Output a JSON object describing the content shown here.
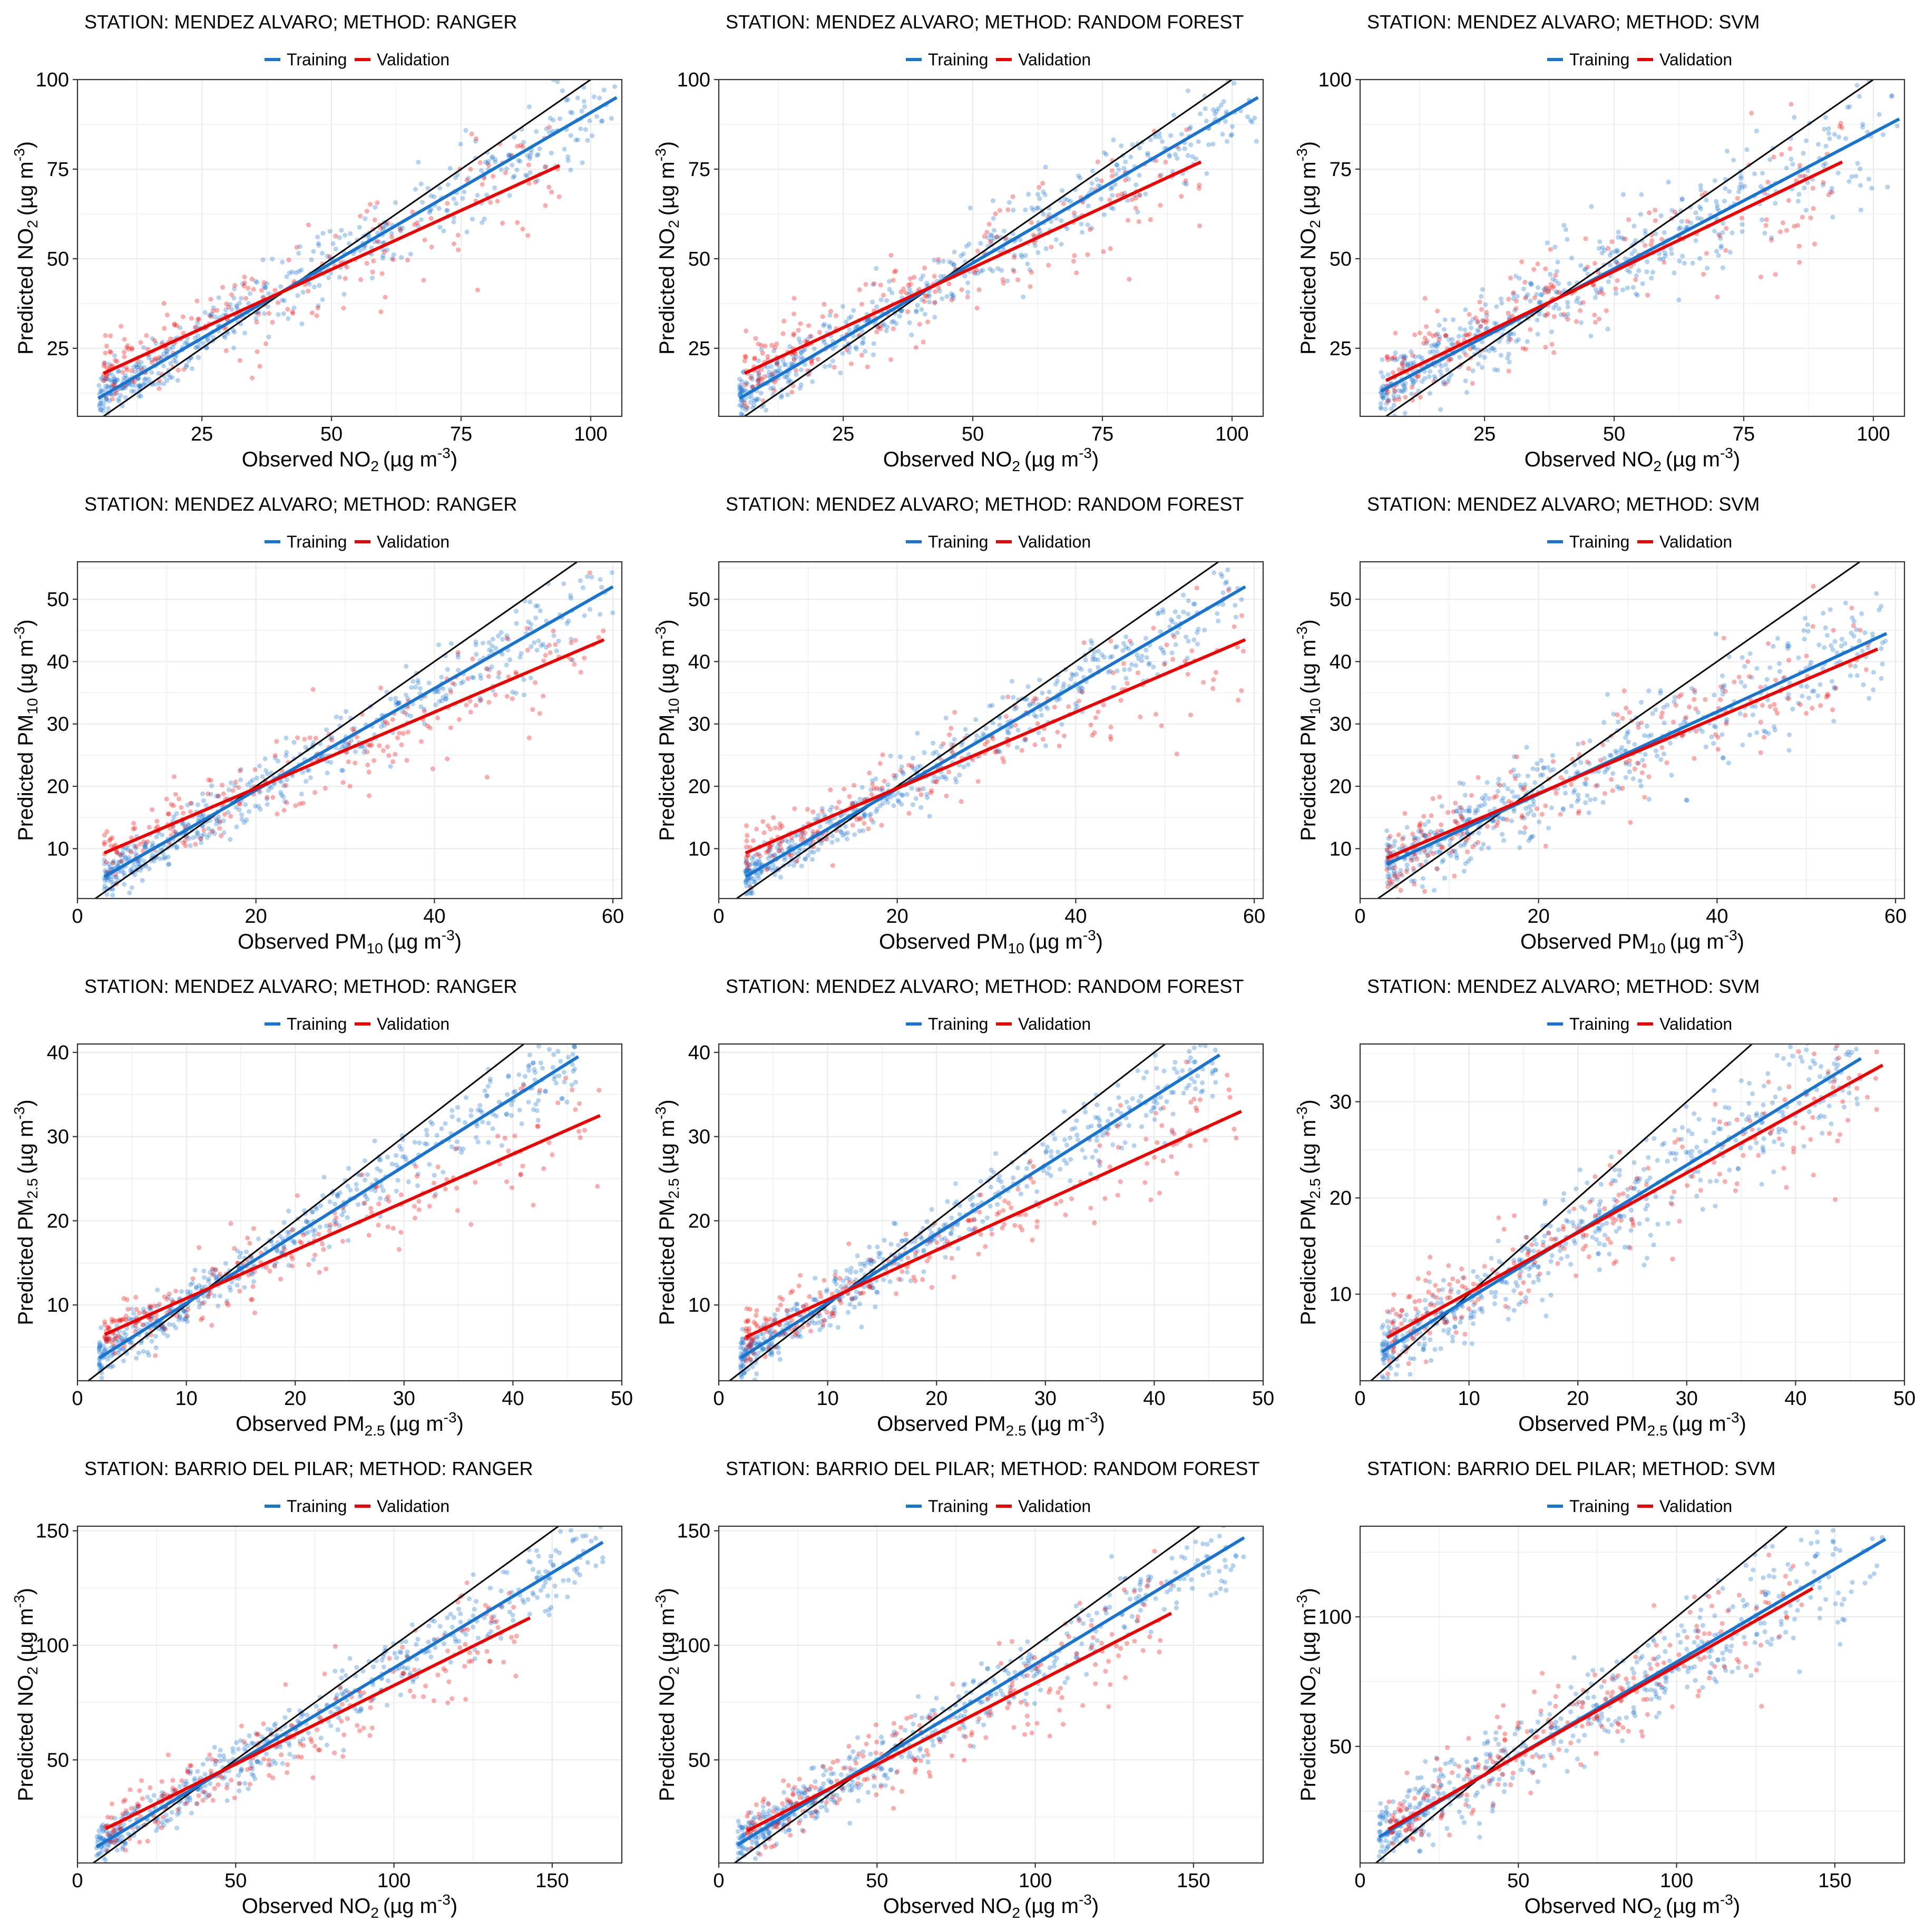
{
  "colors": {
    "training": "#1874CD",
    "validation": "#EE0000",
    "identity": "#000000",
    "grid": "#EBEBEB"
  },
  "legend": {
    "training_label": "Training",
    "validation_label": "Validation"
  },
  "chart_data": [
    {
      "type": "scatter",
      "title": "STATION: MENDEZ ALVARO; METHOD: RANGER",
      "xlabel": {
        "prefix": "Observed NO",
        "sub": "2",
        "unit": "(µg m",
        "sup": "-3",
        "close": ")"
      },
      "ylabel": {
        "prefix": "Predicted NO",
        "sub": "2",
        "unit": "(µg m",
        "sup": "-3",
        "close": ")"
      },
      "xlim": [
        1,
        106
      ],
      "ylim": [
        6,
        100
      ],
      "xticks": [
        25,
        50,
        75,
        100
      ],
      "yticks": [
        25,
        50,
        75,
        100
      ],
      "training_fit": {
        "x": [
          5,
          105
        ],
        "y": [
          11,
          95
        ]
      },
      "validation_fit": {
        "x": [
          6,
          94
        ],
        "y": [
          18,
          76
        ]
      },
      "training_spread": 6,
      "validation_spread": 9
    },
    {
      "type": "scatter",
      "title": "STATION: MENDEZ ALVARO; METHOD: RANDOM FOREST",
      "xlabel": {
        "prefix": "Observed NO",
        "sub": "2",
        "unit": "(µg m",
        "sup": "-3",
        "close": ")"
      },
      "ylabel": {
        "prefix": "Predicted NO",
        "sub": "2",
        "unit": "(µg m",
        "sup": "-3",
        "close": ")"
      },
      "xlim": [
        1,
        106
      ],
      "ylim": [
        6,
        100
      ],
      "xticks": [
        25,
        50,
        75,
        100
      ],
      "yticks": [
        25,
        50,
        75,
        100
      ],
      "training_fit": {
        "x": [
          5,
          105
        ],
        "y": [
          11,
          95
        ]
      },
      "validation_fit": {
        "x": [
          6,
          94
        ],
        "y": [
          18,
          77
        ]
      },
      "training_spread": 6,
      "validation_spread": 9
    },
    {
      "type": "scatter",
      "title": "STATION: MENDEZ ALVARO; METHOD: SVM",
      "xlabel": {
        "prefix": "Observed NO",
        "sub": "2",
        "unit": "(µg m",
        "sup": "-3",
        "close": ")"
      },
      "ylabel": {
        "prefix": "Predicted NO",
        "sub": "2",
        "unit": "(µg m",
        "sup": "-3",
        "close": ")"
      },
      "xlim": [
        1,
        106
      ],
      "ylim": [
        6,
        100
      ],
      "xticks": [
        25,
        50,
        75,
        100
      ],
      "yticks": [
        25,
        50,
        75,
        100
      ],
      "training_fit": {
        "x": [
          5,
          105
        ],
        "y": [
          13,
          89
        ]
      },
      "validation_fit": {
        "x": [
          6,
          94
        ],
        "y": [
          16,
          77
        ]
      },
      "training_spread": 9,
      "validation_spread": 10
    },
    {
      "type": "scatter",
      "title": "STATION: MENDEZ ALVARO; METHOD: RANGER",
      "xlabel": {
        "prefix": "Observed PM",
        "sub": "10",
        "unit": "(µg m",
        "sup": "-3",
        "close": ")"
      },
      "ylabel": {
        "prefix": "Predicted PM",
        "sub": "10",
        "unit": "(µg m",
        "sup": "-3",
        "close": ")"
      },
      "xlim": [
        0,
        61
      ],
      "ylim": [
        2,
        56
      ],
      "xticks": [
        0,
        20,
        40,
        60
      ],
      "yticks": [
        10,
        20,
        30,
        40,
        50
      ],
      "training_fit": {
        "x": [
          3,
          60
        ],
        "y": [
          5.5,
          52
        ]
      },
      "validation_fit": {
        "x": [
          3,
          59
        ],
        "y": [
          9.3,
          43.5
        ]
      },
      "training_spread": 3,
      "validation_spread": 4.5
    },
    {
      "type": "scatter",
      "title": "STATION: MENDEZ ALVARO; METHOD: RANDOM FOREST",
      "xlabel": {
        "prefix": "Observed PM",
        "sub": "10",
        "unit": "(µg m",
        "sup": "-3",
        "close": ")"
      },
      "ylabel": {
        "prefix": "Predicted PM",
        "sub": "10",
        "unit": "(µg m",
        "sup": "-3",
        "close": ")"
      },
      "xlim": [
        0,
        61
      ],
      "ylim": [
        2,
        56
      ],
      "xticks": [
        0,
        20,
        40,
        60
      ],
      "yticks": [
        10,
        20,
        30,
        40,
        50
      ],
      "training_fit": {
        "x": [
          3,
          59
        ],
        "y": [
          5.5,
          52
        ]
      },
      "validation_fit": {
        "x": [
          3,
          59
        ],
        "y": [
          9.3,
          43.5
        ]
      },
      "training_spread": 3,
      "validation_spread": 4.5
    },
    {
      "type": "scatter",
      "title": "STATION: MENDEZ ALVARO; METHOD: SVM",
      "xlabel": {
        "prefix": "Observed PM",
        "sub": "10",
        "unit": "(µg m",
        "sup": "-3",
        "close": ")"
      },
      "ylabel": {
        "prefix": "Predicted PM",
        "sub": "10",
        "unit": "(µg m",
        "sup": "-3",
        "close": ")"
      },
      "xlim": [
        0,
        61
      ],
      "ylim": [
        2,
        56
      ],
      "xticks": [
        0,
        20,
        40,
        60
      ],
      "yticks": [
        10,
        20,
        30,
        40,
        50
      ],
      "training_fit": {
        "x": [
          3,
          59
        ],
        "y": [
          7.5,
          44.5
        ]
      },
      "validation_fit": {
        "x": [
          3,
          58
        ],
        "y": [
          8.5,
          42
        ]
      },
      "training_spread": 4.5,
      "validation_spread": 5
    },
    {
      "type": "scatter",
      "title": "STATION: MENDEZ ALVARO; METHOD: RANGER",
      "xlabel": {
        "prefix": "Observed PM",
        "sub": "2.5",
        "unit": "(µg m",
        "sup": "-3",
        "close": ")"
      },
      "ylabel": {
        "prefix": "Predicted PM",
        "sub": "2.5",
        "unit": "(µg m",
        "sup": "-3",
        "close": ")"
      },
      "xlim": [
        0,
        50
      ],
      "ylim": [
        1,
        41
      ],
      "xticks": [
        0,
        10,
        20,
        30,
        40,
        50
      ],
      "yticks": [
        10,
        20,
        30,
        40
      ],
      "training_fit": {
        "x": [
          2,
          46
        ],
        "y": [
          3.7,
          39.5
        ]
      },
      "validation_fit": {
        "x": [
          2.5,
          48
        ],
        "y": [
          6.5,
          32.5
        ]
      },
      "training_spread": 2.2,
      "validation_spread": 3
    },
    {
      "type": "scatter",
      "title": "STATION: MENDEZ ALVARO; METHOD: RANDOM FOREST",
      "xlabel": {
        "prefix": "Observed PM",
        "sub": "2.5",
        "unit": "(µg m",
        "sup": "-3",
        "close": ")"
      },
      "ylabel": {
        "prefix": "Predicted PM",
        "sub": "2.5",
        "unit": "(µg m",
        "sup": "-3",
        "close": ")"
      },
      "xlim": [
        0,
        50
      ],
      "ylim": [
        1,
        41
      ],
      "xticks": [
        0,
        10,
        20,
        30,
        40,
        50
      ],
      "yticks": [
        10,
        20,
        30,
        40
      ],
      "training_fit": {
        "x": [
          2,
          46
        ],
        "y": [
          3.7,
          39.7
        ]
      },
      "validation_fit": {
        "x": [
          2.5,
          48
        ],
        "y": [
          6.2,
          33
        ]
      },
      "training_spread": 2.2,
      "validation_spread": 3
    },
    {
      "type": "scatter",
      "title": "STATION: MENDEZ ALVARO; METHOD: SVM",
      "xlabel": {
        "prefix": "Observed PM",
        "sub": "2.5",
        "unit": "(µg m",
        "sup": "-3",
        "close": ")"
      },
      "ylabel": {
        "prefix": "Predicted PM",
        "sub": "2.5",
        "unit": "(µg m",
        "sup": "-3",
        "close": ")"
      },
      "xlim": [
        0,
        50
      ],
      "ylim": [
        1,
        36
      ],
      "xticks": [
        0,
        10,
        20,
        30,
        40,
        50
      ],
      "yticks": [
        10,
        20,
        30
      ],
      "training_fit": {
        "x": [
          2,
          46
        ],
        "y": [
          4,
          34.5
        ]
      },
      "validation_fit": {
        "x": [
          2.5,
          48
        ],
        "y": [
          5.5,
          33.8
        ]
      },
      "training_spread": 3,
      "validation_spread": 3.5
    },
    {
      "type": "scatter",
      "title": "STATION: BARRIO DEL PILAR; METHOD: RANGER",
      "xlabel": {
        "prefix": "Observed NO",
        "sub": "2",
        "unit": "(µg m",
        "sup": "-3",
        "close": ")"
      },
      "ylabel": {
        "prefix": "Predicted NO",
        "sub": "2",
        "unit": "(µg m",
        "sup": "-3",
        "close": ")"
      },
      "xlim": [
        0,
        172
      ],
      "ylim": [
        5,
        152
      ],
      "xticks": [
        0,
        50,
        100,
        150
      ],
      "yticks": [
        50,
        100,
        150
      ],
      "training_fit": {
        "x": [
          6,
          166
        ],
        "y": [
          12,
          145
        ]
      },
      "validation_fit": {
        "x": [
          9,
          143
        ],
        "y": [
          20,
          112
        ]
      },
      "training_spread": 8,
      "validation_spread": 12
    },
    {
      "type": "scatter",
      "title": "STATION: BARRIO DEL PILAR; METHOD: RANDOM FOREST",
      "xlabel": {
        "prefix": "Observed NO",
        "sub": "2",
        "unit": "(µg m",
        "sup": "-3",
        "close": ")"
      },
      "ylabel": {
        "prefix": "Predicted NO",
        "sub": "2",
        "unit": "(µg m",
        "sup": "-3",
        "close": ")"
      },
      "xlim": [
        0,
        172
      ],
      "ylim": [
        5,
        152
      ],
      "xticks": [
        0,
        50,
        100,
        150
      ],
      "yticks": [
        50,
        100,
        150
      ],
      "training_fit": {
        "x": [
          6,
          166
        ],
        "y": [
          13,
          147
        ]
      },
      "validation_fit": {
        "x": [
          9,
          143
        ],
        "y": [
          19,
          114
        ]
      },
      "training_spread": 8,
      "validation_spread": 12
    },
    {
      "type": "scatter",
      "title": "STATION: BARRIO DEL PILAR; METHOD: SVM",
      "xlabel": {
        "prefix": "Observed NO",
        "sub": "2",
        "unit": "(µg m",
        "sup": "-3",
        "close": ")"
      },
      "ylabel": {
        "prefix": "Predicted NO",
        "sub": "2",
        "unit": "(µg m",
        "sup": "-3",
        "close": ")"
      },
      "xlim": [
        0,
        172
      ],
      "ylim": [
        5,
        135
      ],
      "xticks": [
        0,
        50,
        100,
        150
      ],
      "yticks": [
        50,
        100
      ],
      "training_fit": {
        "x": [
          6,
          166
        ],
        "y": [
          15,
          130
        ]
      },
      "validation_fit": {
        "x": [
          9,
          143
        ],
        "y": [
          18,
          111
        ]
      },
      "training_spread": 11,
      "validation_spread": 12
    }
  ]
}
